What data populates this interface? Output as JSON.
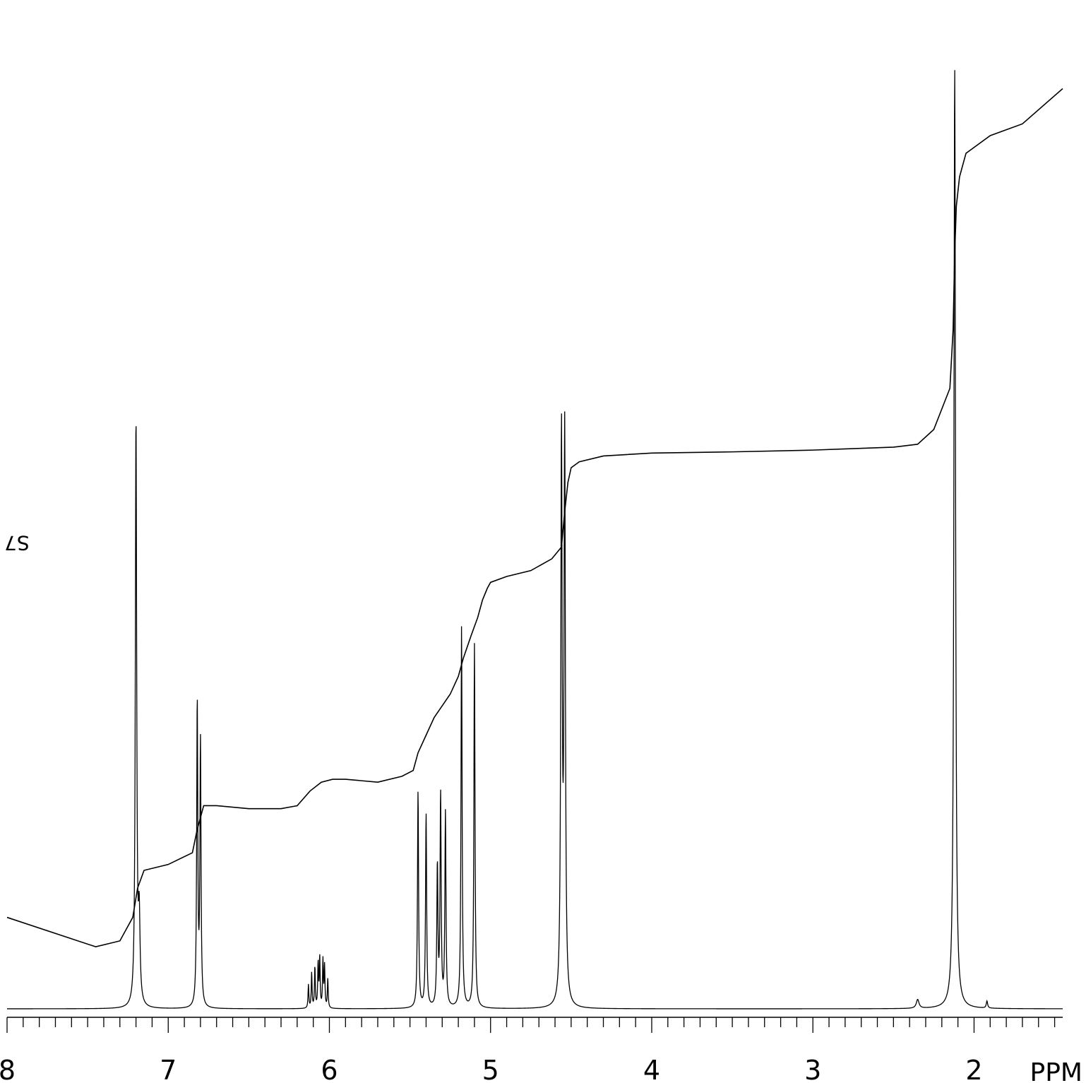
{
  "chart_data": {
    "type": "line",
    "title": "",
    "xlabel": "PPM",
    "ylabel": "",
    "xlim": [
      8.0,
      1.45
    ],
    "x_reversed": true,
    "grid": false,
    "legend": "none",
    "sample_label": "S7",
    "x_ticks": [
      "8",
      "7",
      "6",
      "5",
      "4",
      "3",
      "2"
    ],
    "x_minor_tick_step": 0.1,
    "series": [
      {
        "role": "spectrum",
        "baseline": 0,
        "peaks": [
          {
            "ppm": 7.2,
            "height": 1.0,
            "width": 0.005
          },
          {
            "ppm": 7.18,
            "height": 0.14,
            "width": 0.006
          },
          {
            "ppm": 6.82,
            "height": 0.52,
            "width": 0.004
          },
          {
            "ppm": 6.8,
            "height": 0.45,
            "width": 0.004
          },
          {
            "ppm": 6.13,
            "height": 0.04,
            "width": 0.003
          },
          {
            "ppm": 6.11,
            "height": 0.06,
            "width": 0.003
          },
          {
            "ppm": 6.09,
            "height": 0.07,
            "width": 0.003
          },
          {
            "ppm": 6.07,
            "height": 0.075,
            "width": 0.003
          },
          {
            "ppm": 6.06,
            "height": 0.085,
            "width": 0.003
          },
          {
            "ppm": 6.04,
            "height": 0.08,
            "width": 0.003
          },
          {
            "ppm": 6.03,
            "height": 0.07,
            "width": 0.003
          },
          {
            "ppm": 6.01,
            "height": 0.05,
            "width": 0.003
          },
          {
            "ppm": 5.45,
            "height": 0.37,
            "width": 0.004
          },
          {
            "ppm": 5.4,
            "height": 0.33,
            "width": 0.004
          },
          {
            "ppm": 5.33,
            "height": 0.24,
            "width": 0.004
          },
          {
            "ppm": 5.31,
            "height": 0.36,
            "width": 0.004
          },
          {
            "ppm": 5.28,
            "height": 0.33,
            "width": 0.004
          },
          {
            "ppm": 5.18,
            "height": 0.65,
            "width": 0.004
          },
          {
            "ppm": 5.1,
            "height": 0.62,
            "width": 0.004
          },
          {
            "ppm": 4.56,
            "height": 0.96,
            "width": 0.005
          },
          {
            "ppm": 4.54,
            "height": 0.96,
            "width": 0.005
          },
          {
            "ppm": 2.35,
            "height": 0.015,
            "width": 0.01
          },
          {
            "ppm": 2.12,
            "height": 1.6,
            "width": 0.006
          },
          {
            "ppm": 1.92,
            "height": 0.012,
            "width": 0.005
          }
        ]
      },
      {
        "role": "integral",
        "x": [
          8.0,
          7.45,
          7.3,
          7.22,
          7.19,
          7.15,
          7.0,
          6.85,
          6.82,
          6.78,
          6.7,
          6.5,
          6.3,
          6.2,
          6.12,
          6.05,
          5.98,
          5.9,
          5.7,
          5.55,
          5.48,
          5.45,
          5.4,
          5.35,
          5.3,
          5.25,
          5.2,
          5.17,
          5.12,
          5.08,
          5.05,
          5.02,
          5.0,
          4.9,
          4.75,
          4.62,
          4.56,
          4.54,
          4.52,
          4.5,
          4.45,
          4.3,
          4.0,
          3.5,
          3.0,
          2.5,
          2.35,
          2.25,
          2.15,
          2.13,
          2.12,
          2.11,
          2.09,
          2.05,
          1.9,
          1.7,
          1.45
        ],
        "y": [
          0.17,
          0.12,
          0.13,
          0.17,
          0.22,
          0.25,
          0.26,
          0.28,
          0.32,
          0.36,
          0.36,
          0.355,
          0.355,
          0.36,
          0.385,
          0.4,
          0.405,
          0.405,
          0.4,
          0.41,
          0.42,
          0.45,
          0.48,
          0.51,
          0.53,
          0.55,
          0.58,
          0.61,
          0.65,
          0.68,
          0.71,
          0.73,
          0.74,
          0.75,
          0.76,
          0.78,
          0.8,
          0.86,
          0.91,
          0.935,
          0.945,
          0.955,
          0.96,
          0.962,
          0.965,
          0.97,
          0.975,
          1.0,
          1.07,
          1.17,
          1.3,
          1.38,
          1.43,
          1.47,
          1.5,
          1.52,
          1.58
        ]
      }
    ]
  }
}
